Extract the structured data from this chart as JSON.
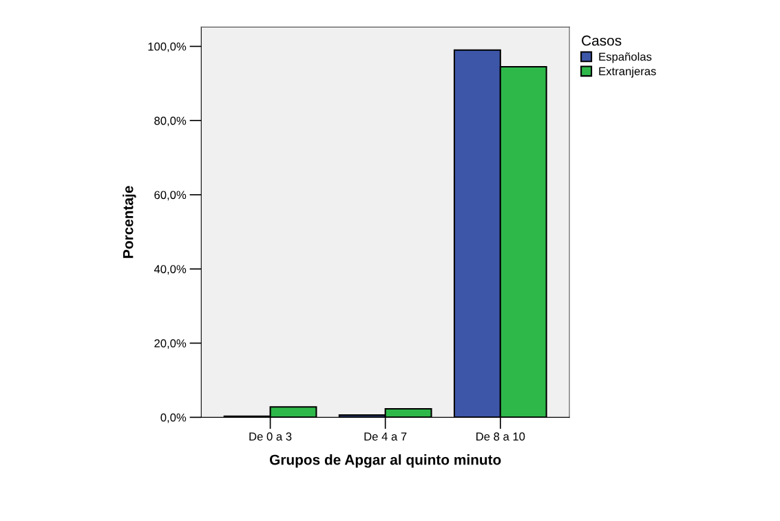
{
  "chart_data": {
    "type": "bar",
    "xlabel": "Grupos de Apgar al quinto minuto",
    "ylabel": "Porcentaje",
    "legend_title": "Casos",
    "categories": [
      "De 0 a 3",
      "De 4 a 7",
      "De 8 a 10"
    ],
    "series": [
      {
        "name": "Españolas",
        "color": "#3d56a8",
        "values": [
          0.3,
          0.6,
          99.0
        ]
      },
      {
        "name": "Extranjeras",
        "color": "#2fb84a",
        "values": [
          2.8,
          2.3,
          94.5
        ]
      }
    ],
    "ylim": [
      0,
      105.2
    ],
    "yticks": [
      {
        "value": 0,
        "label": "0,0%"
      },
      {
        "value": 20,
        "label": "20,0%"
      },
      {
        "value": 40,
        "label": "40,0%"
      },
      {
        "value": 60,
        "label": "60,0%"
      },
      {
        "value": 80,
        "label": "80,0%"
      },
      {
        "value": 100,
        "label": "100,0%"
      }
    ],
    "grid": false,
    "legend": "top right"
  }
}
